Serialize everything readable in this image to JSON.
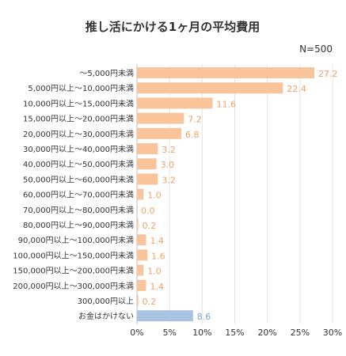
{
  "chart_data": {
    "type": "bar",
    "orientation": "horizontal",
    "title": "推し活にかける1ヶ月の平均費用",
    "note": "N=500",
    "xlim": [
      0,
      30
    ],
    "x_ticks": [
      "0%",
      "5%",
      "10%",
      "15%",
      "20%",
      "25%",
      "30%"
    ],
    "grid": true,
    "categories": [
      "～5,000円未満",
      "5,000円以上～10,000円未満",
      "10,000円以上～15,000円未満",
      "15,000円以上～20,000円未満",
      "20,000円以上～30,000円未満",
      "30,000円以上～40,000円未満",
      "40,000円以上～50,000円未満",
      "50,000円以上～60,000円未満",
      "60,000円以上～70,000円未満",
      "70,000円以上～80,000円未満",
      "80,000円以上～90,000円未満",
      "90,000円以上～100,000円未満",
      "100,000円以上～150,000円未満",
      "150,000円以上～200,000円未満",
      "200,000円以上～300,000円未満",
      "300,000円以上",
      "お金はかけない"
    ],
    "values": [
      27.2,
      22.4,
      11.6,
      7.2,
      6.8,
      3.2,
      3.0,
      3.2,
      1.0,
      0.0,
      0.2,
      1.4,
      1.6,
      1.0,
      1.4,
      0.2,
      8.6
    ],
    "value_labels": [
      "27.2",
      "22.4",
      "11.6",
      "7.2",
      "6.8",
      "3.2",
      "3.0",
      "3.2",
      "1.0",
      "0.0",
      "0.2",
      "1.4",
      "1.6",
      "1.0",
      "1.4",
      "0.2",
      "8.6"
    ],
    "colors": {
      "bar": "#f9c49a",
      "bar_highlight": "#a9c4e0",
      "label": "#f0a36a",
      "label_highlight": "#7da4cc",
      "grid": "#e4e4e4",
      "axis": "#bdbdbd",
      "text": "#333333"
    }
  }
}
